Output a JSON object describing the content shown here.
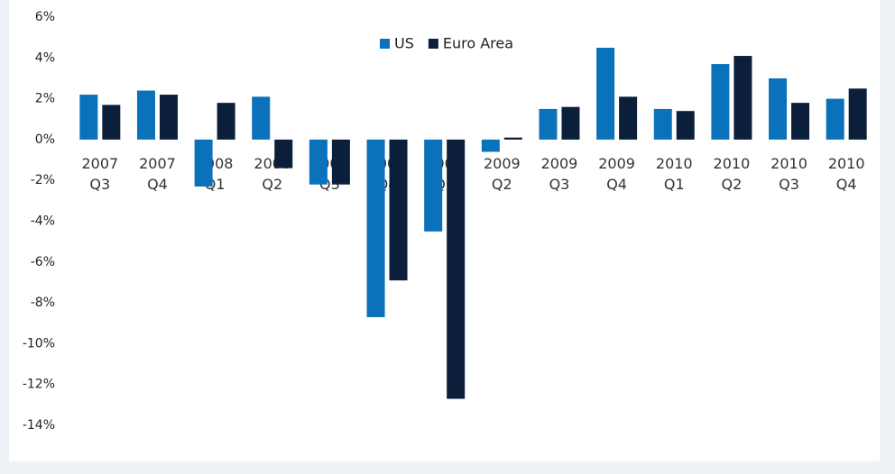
{
  "chart_data": {
    "type": "bar",
    "categories": [
      "2007 Q3",
      "2007 Q4",
      "2008 Q1",
      "2008 Q2",
      "2008 Q3",
      "2008 Q4",
      "2009 Q1",
      "2009 Q2",
      "2009 Q3",
      "2009 Q4",
      "2010 Q1",
      "2010 Q2",
      "2010 Q3",
      "2010 Q4"
    ],
    "series": [
      {
        "name": "US",
        "color": "#0a72ba",
        "values": [
          2.2,
          2.4,
          -2.3,
          2.1,
          -2.2,
          -8.7,
          -4.5,
          -0.6,
          1.5,
          4.5,
          1.5,
          3.7,
          3.0,
          2.0
        ]
      },
      {
        "name": "Euro Area",
        "color": "#0b1f3a",
        "values": [
          1.7,
          2.2,
          1.8,
          -1.4,
          -2.2,
          -6.9,
          -12.7,
          0.1,
          1.6,
          2.1,
          1.4,
          4.1,
          1.8,
          2.5
        ]
      }
    ],
    "ylim": [
      -14,
      6
    ],
    "yticks": [
      {
        "value": -14,
        "label": "-14%"
      },
      {
        "value": -12,
        "label": "-12%"
      },
      {
        "value": -10,
        "label": "-10%"
      },
      {
        "value": -8,
        "label": "-8%"
      },
      {
        "value": -6,
        "label": "-6%"
      },
      {
        "value": -4,
        "label": "-4%"
      },
      {
        "value": -2,
        "label": "-2%"
      },
      {
        "value": 0,
        "label": "0%"
      },
      {
        "value": 2,
        "label": "2%"
      },
      {
        "value": 4,
        "label": "4%"
      },
      {
        "value": 6,
        "label": "6%"
      }
    ],
    "grid": false,
    "legend": "top"
  }
}
